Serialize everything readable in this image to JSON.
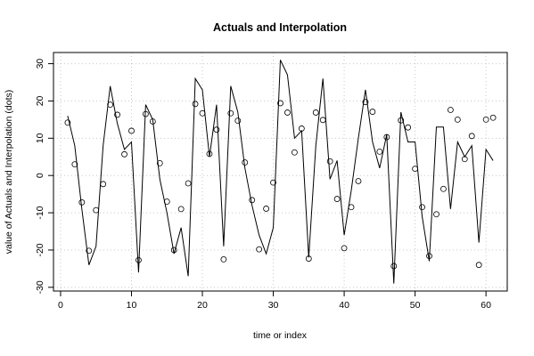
{
  "chart_data": {
    "type": "line",
    "title": "Actuals and Interpolation",
    "xlabel": "time or index",
    "ylabel": "value of Actuals and Interpolation (dots)",
    "xlim": [
      -1,
      63
    ],
    "ylim": [
      -31,
      33
    ],
    "x_ticks": [
      0,
      10,
      20,
      30,
      40,
      50,
      60
    ],
    "y_ticks": [
      -30,
      -20,
      -10,
      0,
      10,
      20,
      30
    ],
    "grid": true,
    "series": [
      {
        "style": "line",
        "x": [
          1,
          2,
          3,
          4,
          5,
          6,
          7,
          8,
          9,
          10,
          11,
          12,
          13,
          14,
          15,
          16,
          17,
          18,
          19,
          20,
          21,
          22,
          23,
          24,
          25,
          26,
          27,
          28,
          29,
          30,
          31,
          32,
          33,
          34,
          35,
          36,
          37,
          38,
          39,
          40,
          41,
          42,
          43,
          44,
          45,
          46,
          47,
          48,
          49,
          50,
          51,
          52,
          53,
          54,
          55,
          56,
          57,
          58,
          59,
          60,
          61
        ],
        "values": [
          16,
          8,
          -9,
          -24,
          -19,
          8,
          24,
          14,
          7,
          9,
          -26,
          19,
          15,
          -1,
          -10,
          -21,
          -14,
          -27,
          26,
          23,
          5,
          19,
          -19,
          24,
          17,
          2,
          -8,
          -16,
          -21,
          -14,
          31,
          27,
          10,
          12,
          -22,
          8,
          26,
          -1,
          4,
          -16,
          -4,
          10,
          23,
          9,
          2,
          11,
          -29,
          17,
          9,
          9,
          -11,
          -23,
          13,
          13,
          -9,
          9,
          5,
          8,
          -18,
          7,
          4
        ]
      },
      {
        "style": "points",
        "x": [
          1,
          2,
          3,
          4,
          5,
          6,
          7,
          8,
          9,
          10,
          11,
          12,
          13,
          14,
          15,
          16,
          17,
          18,
          19,
          20,
          21,
          22,
          23,
          24,
          25,
          26,
          27,
          28,
          29,
          30,
          31,
          32,
          33,
          34,
          35,
          36,
          37,
          38,
          39,
          40,
          41,
          42,
          43,
          44,
          45,
          46,
          47,
          48,
          49,
          50,
          51,
          52,
          53,
          54,
          55,
          56,
          57,
          58,
          59,
          60,
          61
        ],
        "values": [
          14.2,
          3,
          -7.2,
          -20.2,
          -9.3,
          -2.3,
          19,
          16.3,
          5.7,
          12,
          -22.7,
          16.5,
          14.5,
          3.3,
          -7,
          -20,
          -9,
          -2.1,
          19.2,
          16.7,
          5.8,
          12.3,
          -22.5,
          16.7,
          14.7,
          3.5,
          -6.6,
          -19.8,
          -8.9,
          -1.9,
          19.4,
          16.9,
          6.2,
          12.6,
          -22.3,
          16.9,
          14.9,
          3.8,
          -6.3,
          -19.5,
          -8.5,
          -1.5,
          19.7,
          17.1,
          6.4,
          10.3,
          -24.3,
          14.8,
          12.9,
          1.8,
          -8.5,
          -21.6,
          -10.4,
          -3.6,
          17.6,
          15,
          4.4,
          10.6,
          -24,
          15,
          15.5
        ]
      }
    ]
  }
}
